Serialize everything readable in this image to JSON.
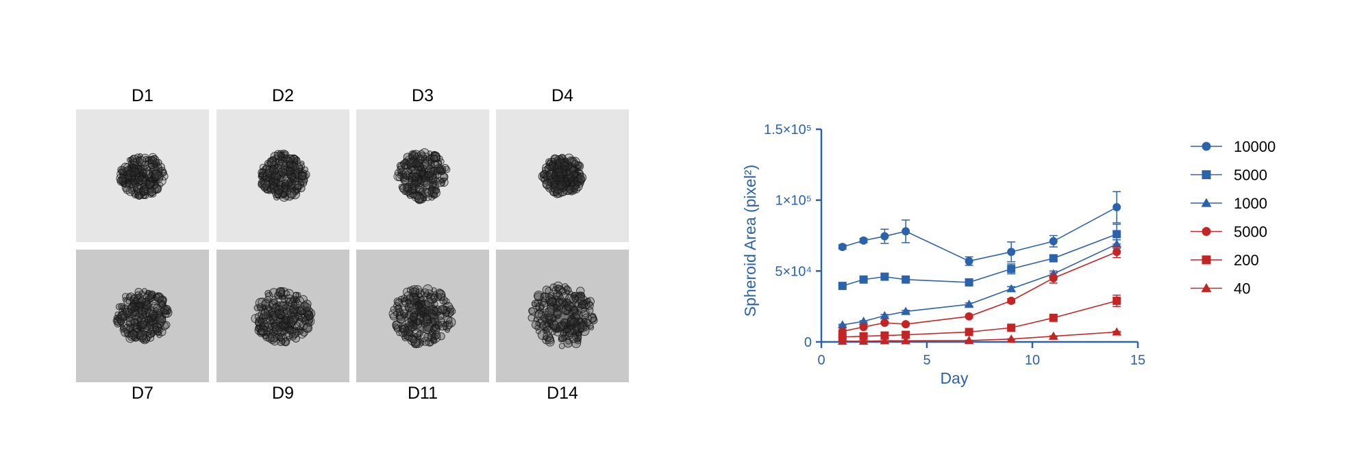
{
  "image_panels": [
    {
      "label": "D1",
      "radius": 0.33,
      "darkness": 0.45
    },
    {
      "label": "D2",
      "radius": 0.35,
      "darkness": 0.5
    },
    {
      "label": "D3",
      "radius": 0.38,
      "darkness": 0.55
    },
    {
      "label": "D4",
      "radius": 0.3,
      "darkness": 0.55
    },
    {
      "label": "D7",
      "radius": 0.4,
      "darkness": 0.7
    },
    {
      "label": "D9",
      "radius": 0.42,
      "darkness": 0.75
    },
    {
      "label": "D11",
      "radius": 0.45,
      "darkness": 0.8
    },
    {
      "label": "D14",
      "radius": 0.48,
      "darkness": 0.85
    }
  ],
  "colors": {
    "blue": "#2B62AC",
    "red": "#C42424",
    "image_bg_top": "#e6e6e6",
    "image_bg_bottom": "#c9c9c9"
  },
  "chart_data": {
    "type": "line",
    "title": "",
    "xlabel": "Day",
    "ylabel": "Spheroid Area (pixel²)",
    "xlim": [
      0,
      15
    ],
    "ylim": [
      0,
      150000
    ],
    "x_ticks": [
      0,
      5,
      10,
      15
    ],
    "x_tick_labels": [
      "0",
      "5",
      "10",
      "15"
    ],
    "y_ticks": [
      0,
      50000,
      100000,
      150000
    ],
    "y_tick_labels": [
      "0",
      "5×10⁴",
      "1×10⁵",
      "1.5×10⁵"
    ],
    "legend_position": "right",
    "series": [
      {
        "name": "10000",
        "color": "#2B62AC",
        "marker": "circle",
        "x": [
          1,
          2,
          3,
          4,
          7,
          9,
          11,
          14
        ],
        "y": [
          67000,
          71500,
          74500,
          78000,
          57000,
          63500,
          71000,
          95000
        ],
        "err": [
          1500,
          1500,
          5000,
          8000,
          3000,
          7000,
          4000,
          11000
        ]
      },
      {
        "name": "5000",
        "color": "#2B62AC",
        "marker": "square",
        "x": [
          1,
          2,
          3,
          4,
          7,
          9,
          11,
          14
        ],
        "y": [
          39500,
          44000,
          46000,
          44000,
          42000,
          51500,
          59000,
          76000
        ],
        "err": [
          1000,
          1000,
          1500,
          1000,
          1500,
          3500,
          1500,
          7000
        ]
      },
      {
        "name": "1000",
        "color": "#2B62AC",
        "marker": "triangle",
        "x": [
          1,
          2,
          3,
          4,
          7,
          9,
          11,
          14
        ],
        "y": [
          12000,
          14500,
          18500,
          21500,
          26500,
          37500,
          48000,
          69000
        ],
        "err": [
          500,
          500,
          800,
          800,
          1000,
          1500,
          2000,
          3000
        ]
      },
      {
        "name": "5000",
        "color": "#C42424",
        "marker": "circle",
        "x": [
          1,
          2,
          3,
          4,
          7,
          9,
          11,
          14
        ],
        "y": [
          7500,
          10500,
          13500,
          12500,
          18000,
          29000,
          45000,
          63500
        ],
        "err": [
          500,
          500,
          800,
          800,
          1000,
          1500,
          3500,
          4000
        ]
      },
      {
        "name": "200",
        "color": "#C42424",
        "marker": "square",
        "x": [
          1,
          2,
          3,
          4,
          7,
          9,
          11,
          14
        ],
        "y": [
          3500,
          4000,
          4500,
          5000,
          7000,
          10000,
          17000,
          29000
        ],
        "err": [
          300,
          300,
          300,
          300,
          500,
          800,
          1000,
          4000
        ]
      },
      {
        "name": "40",
        "color": "#C42424",
        "marker": "triangle",
        "x": [
          1,
          2,
          3,
          4,
          7,
          9,
          11,
          14
        ],
        "y": [
          500,
          500,
          800,
          800,
          1000,
          2000,
          4000,
          7000
        ],
        "err": [
          100,
          100,
          100,
          100,
          200,
          200,
          300,
          500
        ]
      }
    ]
  }
}
